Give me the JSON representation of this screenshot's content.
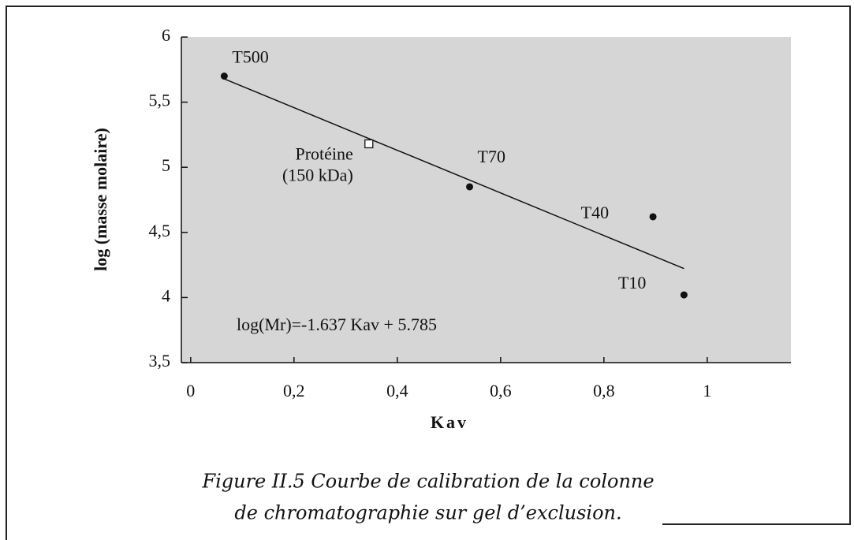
{
  "chart_data": {
    "type": "scatter",
    "xlabel": "Kav",
    "ylabel": "log (masse molaire)",
    "xlim": [
      -0.018,
      1.162
    ],
    "ylim": [
      3.5,
      6
    ],
    "xticks": [
      0,
      {
        "value": 0.2,
        "label": "0,2"
      },
      {
        "value": 0.4,
        "label": "0,4"
      },
      {
        "value": 0.6,
        "label": "0,6"
      },
      {
        "value": 0.8,
        "label": "0,8"
      },
      1
    ],
    "yticks": [
      {
        "value": 3.5,
        "label": "3,5"
      },
      4,
      {
        "value": 4.5,
        "label": "4,5"
      },
      5,
      {
        "value": 5.5,
        "label": "5,5"
      },
      6
    ],
    "series": [
      {
        "name": "T500",
        "marker": "filled",
        "x": [
          0.065
        ],
        "values": [
          5.7
        ]
      },
      {
        "name": "Protéine",
        "sublabel": "(150 kDa)",
        "marker": "open-square",
        "x": [
          0.345
        ],
        "values": [
          5.18
        ]
      },
      {
        "name": "T70",
        "marker": "filled",
        "x": [
          0.54
        ],
        "values": [
          4.85
        ]
      },
      {
        "name": "T40",
        "marker": "filled",
        "x": [
          0.895
        ],
        "values": [
          4.62
        ]
      },
      {
        "name": "T10",
        "marker": "filled",
        "x": [
          0.955
        ],
        "values": [
          4.02
        ]
      }
    ],
    "fit": {
      "label": "log(Mr)=-1.637 Kav + 5.785",
      "x": [
        0.065,
        0.955
      ],
      "values": [
        5.679,
        4.222
      ]
    },
    "background": "#d6d6d6",
    "caption": [
      "Figure II.5 Courbe de calibration de la colonne",
      "de chromatographie sur gel d’exclusion."
    ]
  }
}
